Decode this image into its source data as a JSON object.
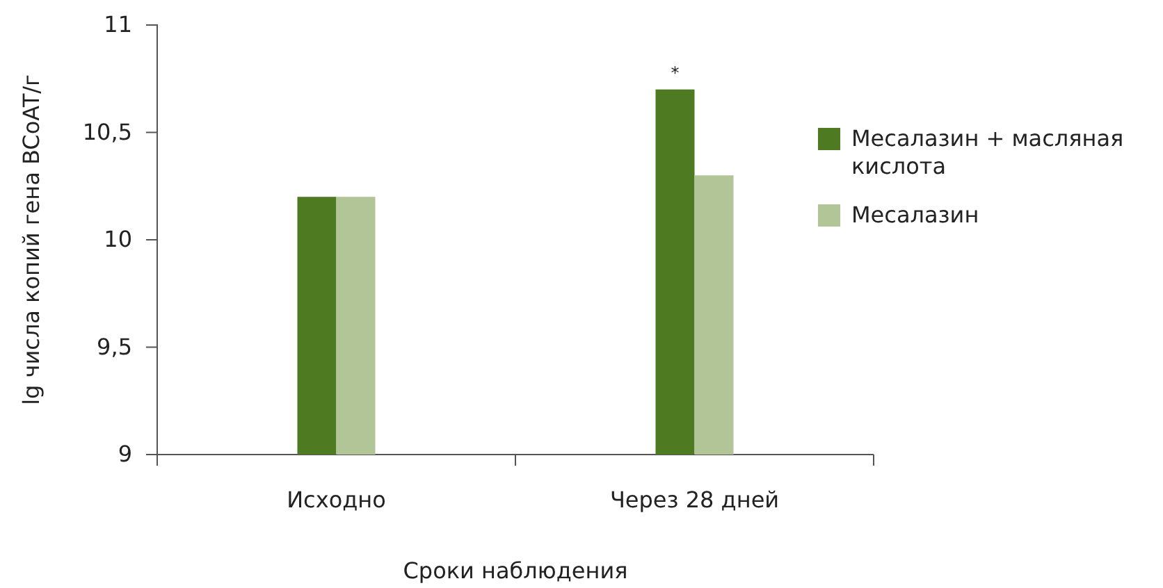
{
  "chart_data": {
    "type": "bar",
    "xlabel": "Сроки наблюдения",
    "ylabel": "lg числа копий гена BCoAT/г",
    "categories": [
      "Исходно",
      "Через 28 дней"
    ],
    "series": [
      {
        "name": "Месалазин + масляная кислота",
        "color": "#4e7a21",
        "values": [
          10.2,
          10.7
        ]
      },
      {
        "name": "Месалазин",
        "color": "#b2c596",
        "values": [
          10.2,
          10.3
        ]
      }
    ],
    "ylim": [
      9,
      11
    ],
    "yticks": [
      9,
      {
        "value": 9.5,
        "label": "9,5"
      },
      10,
      {
        "value": 10.5,
        "label": "10,5"
      },
      11
    ],
    "annotations": [
      {
        "text": "*",
        "x": "Через 28 дней",
        "y": 10.7
      }
    ],
    "grid": false,
    "legend": "right"
  }
}
